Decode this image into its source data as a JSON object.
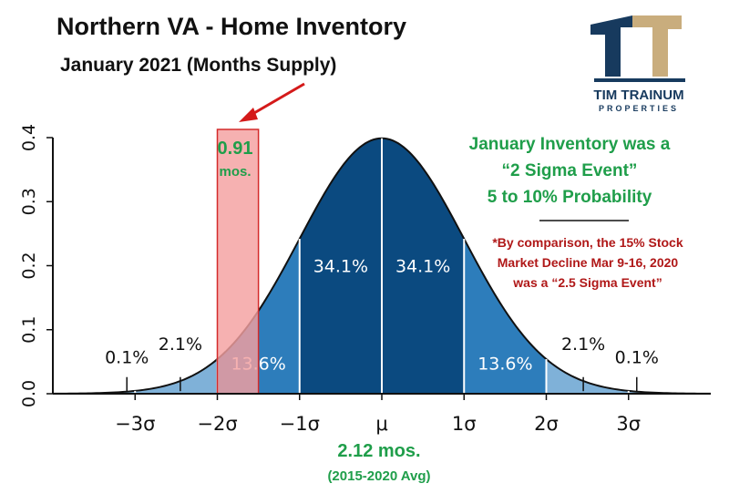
{
  "header": {
    "title": "Northern VA - Home Inventory",
    "subtitle": "January 2021 (Months Supply)"
  },
  "logo": {
    "name": "TIM TRAINUM",
    "tagline": "PROPERTIES",
    "icon": "pillar-tt-logo",
    "colors": {
      "dark": "#173a5e",
      "tan": "#c9ad7d"
    }
  },
  "annotations": {
    "current_value": "0.91",
    "current_unit": "mos.",
    "average_value": "2.12 mos.",
    "average_label": "(2015-2020 Avg)",
    "sigma_note": [
      "January Inventory was a",
      "“2 Sigma Event”",
      "5 to 10% Probability"
    ],
    "comparison_note": [
      "*By comparison, the 15% Stock",
      "Market Decline Mar 9-16, 2020",
      "was a “2.5 Sigma Event”"
    ]
  },
  "colors": {
    "band_inner": "#0b4a80",
    "band_middle": "#2d7dbb",
    "band_outer": "#7fb1d8",
    "highlight_fill": "#f4a0a0",
    "highlight_stroke": "#d42a2a",
    "arrow": "#d41a1a",
    "green_text": "#1f9e4a",
    "red_text": "#b01818"
  },
  "chart_data": {
    "type": "area",
    "distribution": "standard normal",
    "x_range": [
      -4,
      4
    ],
    "ylim": [
      0,
      0.4
    ],
    "y_ticks": [
      "0.0",
      "0.1",
      "0.2",
      "0.3",
      "0.4"
    ],
    "x_ticks": [
      {
        "x": -3,
        "label": "−3σ"
      },
      {
        "x": -2,
        "label": "−2σ"
      },
      {
        "x": -1,
        "label": "−1σ"
      },
      {
        "x": 0,
        "label": "μ"
      },
      {
        "x": 1,
        "label": "1σ"
      },
      {
        "x": 2,
        "label": "2σ"
      },
      {
        "x": 3,
        "label": "3σ"
      }
    ],
    "bands": [
      {
        "from": -3,
        "to": -2,
        "shade": "outer"
      },
      {
        "from": -2,
        "to": -1,
        "shade": "middle"
      },
      {
        "from": -1,
        "to": 0,
        "shade": "inner"
      },
      {
        "from": 0,
        "to": 1,
        "shade": "inner"
      },
      {
        "from": 1,
        "to": 2,
        "shade": "middle"
      },
      {
        "from": 2,
        "to": 3,
        "shade": "outer"
      }
    ],
    "band_labels": [
      {
        "x": -0.5,
        "y": 0.19,
        "text": "34.1%",
        "color": "#ffffff"
      },
      {
        "x": 0.5,
        "y": 0.19,
        "text": "34.1%",
        "color": "#ffffff"
      },
      {
        "x": -1.5,
        "y": 0.038,
        "text": "13.6%",
        "color": "#ffffff"
      },
      {
        "x": 1.5,
        "y": 0.038,
        "text": "13.6%",
        "color": "#ffffff"
      },
      {
        "x": -2.45,
        "y": 0.068,
        "text": "2.1%",
        "color": "#111111"
      },
      {
        "x": 2.45,
        "y": 0.068,
        "text": "2.1%",
        "color": "#111111"
      },
      {
        "x": -3.1,
        "y": 0.048,
        "text": "0.1%",
        "color": "#111111"
      },
      {
        "x": 3.1,
        "y": 0.048,
        "text": "0.1%",
        "color": "#111111"
      }
    ],
    "label_ticks": [
      -3.1,
      -2.45,
      2.45,
      3.1
    ],
    "highlight_range": [
      -2,
      -1.5
    ]
  }
}
